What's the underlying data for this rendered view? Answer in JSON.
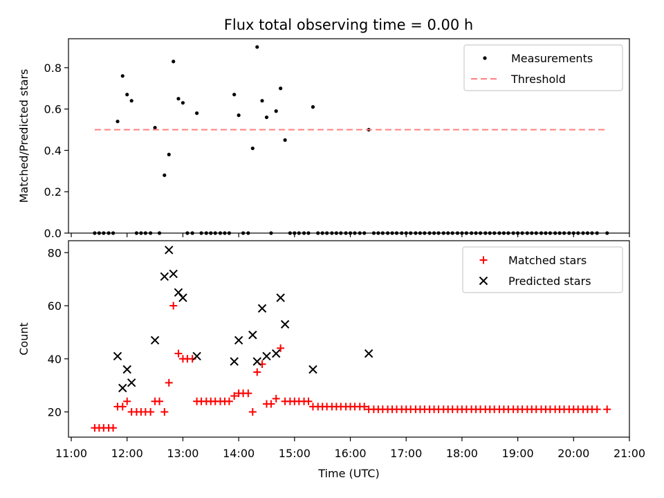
{
  "chart_data": [
    {
      "type": "scatter",
      "title": "Flux total observing time = 0.00 h",
      "xlabel": "",
      "ylabel": "Matched/Predicted stars",
      "xlim_hours": [
        10.95,
        21.0
      ],
      "ylim": [
        0,
        0.94
      ],
      "yticks": [
        0.0,
        0.2,
        0.4,
        0.6,
        0.8
      ],
      "ytick_labels": [
        "0.0",
        "0.2",
        "0.4",
        "0.6",
        "0.8"
      ],
      "grid": false,
      "legend": "top-right",
      "series": [
        {
          "name": "Measurements",
          "marker": "dot",
          "color": "#000000",
          "points": [
            [
              11.42,
              0
            ],
            [
              11.5,
              0
            ],
            [
              11.58,
              0
            ],
            [
              11.67,
              0
            ],
            [
              11.75,
              0
            ],
            [
              11.83,
              0.54
            ],
            [
              11.92,
              0.76
            ],
            [
              12.0,
              0.67
            ],
            [
              12.08,
              0.64
            ],
            [
              12.17,
              0
            ],
            [
              12.25,
              0
            ],
            [
              12.33,
              0
            ],
            [
              12.42,
              0
            ],
            [
              12.5,
              0.51
            ],
            [
              12.58,
              0
            ],
            [
              12.67,
              0.28
            ],
            [
              12.75,
              0.38
            ],
            [
              12.83,
              0.83
            ],
            [
              12.92,
              0.65
            ],
            [
              13.0,
              0.63
            ],
            [
              13.08,
              0
            ],
            [
              13.17,
              0
            ],
            [
              13.25,
              0.58
            ],
            [
              13.33,
              0
            ],
            [
              13.42,
              0
            ],
            [
              13.5,
              0
            ],
            [
              13.58,
              0
            ],
            [
              13.67,
              0
            ],
            [
              13.75,
              0
            ],
            [
              13.83,
              0
            ],
            [
              13.92,
              0.67
            ],
            [
              14.0,
              0.57
            ],
            [
              14.08,
              0
            ],
            [
              14.17,
              0
            ],
            [
              14.25,
              0.41
            ],
            [
              14.33,
              0.9
            ],
            [
              14.42,
              0.64
            ],
            [
              14.5,
              0.56
            ],
            [
              14.58,
              0
            ],
            [
              14.67,
              0.59
            ],
            [
              14.75,
              0.7
            ],
            [
              14.83,
              0.45
            ],
            [
              14.92,
              0
            ],
            [
              15.0,
              0
            ],
            [
              15.08,
              0
            ],
            [
              15.17,
              0
            ],
            [
              15.25,
              0
            ],
            [
              15.33,
              0.61
            ],
            [
              15.42,
              0
            ],
            [
              15.5,
              0
            ],
            [
              15.58,
              0
            ],
            [
              15.67,
              0
            ],
            [
              15.75,
              0
            ],
            [
              15.83,
              0
            ],
            [
              15.92,
              0
            ],
            [
              16.0,
              0
            ],
            [
              16.08,
              0
            ],
            [
              16.17,
              0
            ],
            [
              16.25,
              0
            ],
            [
              16.33,
              0.5
            ],
            [
              16.42,
              0
            ],
            [
              16.5,
              0
            ],
            [
              16.58,
              0
            ],
            [
              16.67,
              0
            ],
            [
              16.75,
              0
            ],
            [
              16.83,
              0
            ],
            [
              16.92,
              0
            ],
            [
              17.0,
              0
            ],
            [
              17.08,
              0
            ],
            [
              17.17,
              0
            ],
            [
              17.25,
              0
            ],
            [
              17.33,
              0
            ],
            [
              17.42,
              0
            ],
            [
              17.5,
              0
            ],
            [
              17.58,
              0
            ],
            [
              17.67,
              0
            ],
            [
              17.75,
              0
            ],
            [
              17.83,
              0
            ],
            [
              17.92,
              0
            ],
            [
              18.0,
              0
            ],
            [
              18.08,
              0
            ],
            [
              18.17,
              0
            ],
            [
              18.25,
              0
            ],
            [
              18.33,
              0
            ],
            [
              18.42,
              0
            ],
            [
              18.5,
              0
            ],
            [
              18.58,
              0
            ],
            [
              18.67,
              0
            ],
            [
              18.75,
              0
            ],
            [
              18.83,
              0
            ],
            [
              18.92,
              0
            ],
            [
              19.0,
              0
            ],
            [
              19.08,
              0
            ],
            [
              19.17,
              0
            ],
            [
              19.25,
              0
            ],
            [
              19.33,
              0
            ],
            [
              19.42,
              0
            ],
            [
              19.5,
              0
            ],
            [
              19.58,
              0
            ],
            [
              19.67,
              0
            ],
            [
              19.75,
              0
            ],
            [
              19.83,
              0
            ],
            [
              19.92,
              0
            ],
            [
              20.0,
              0
            ],
            [
              20.08,
              0
            ],
            [
              20.17,
              0
            ],
            [
              20.25,
              0
            ],
            [
              20.33,
              0
            ],
            [
              20.42,
              0
            ],
            [
              20.6,
              0
            ]
          ]
        },
        {
          "name": "Threshold",
          "type": "line",
          "style": "dashed",
          "color": "#ff7f7f",
          "x": [
            11.42,
            20.6
          ],
          "y": [
            0.5,
            0.5
          ]
        }
      ]
    },
    {
      "type": "scatter",
      "title": "",
      "xlabel": "Time (UTC)",
      "ylabel": "Count",
      "xlim_hours": [
        10.95,
        21.0
      ],
      "ylim": [
        10.5,
        84.5
      ],
      "yticks": [
        20,
        40,
        60,
        80
      ],
      "ytick_labels": [
        "20",
        "40",
        "60",
        "80"
      ],
      "xticks_hours": [
        11,
        12,
        13,
        14,
        15,
        16,
        17,
        18,
        19,
        20,
        21
      ],
      "xtick_labels": [
        "11:00",
        "12:00",
        "13:00",
        "14:00",
        "15:00",
        "16:00",
        "17:00",
        "18:00",
        "19:00",
        "20:00",
        "21:00"
      ],
      "grid": false,
      "legend": "top-right",
      "series": [
        {
          "name": "Matched stars",
          "marker": "plus",
          "color": "#ff0000",
          "points": [
            [
              11.42,
              14
            ],
            [
              11.5,
              14
            ],
            [
              11.58,
              14
            ],
            [
              11.67,
              14
            ],
            [
              11.75,
              14
            ],
            [
              11.83,
              22
            ],
            [
              11.92,
              22
            ],
            [
              12.0,
              24
            ],
            [
              12.08,
              20
            ],
            [
              12.17,
              20
            ],
            [
              12.25,
              20
            ],
            [
              12.33,
              20
            ],
            [
              12.42,
              20
            ],
            [
              12.5,
              24
            ],
            [
              12.58,
              24
            ],
            [
              12.67,
              20
            ],
            [
              12.75,
              31
            ],
            [
              12.83,
              60
            ],
            [
              12.92,
              42
            ],
            [
              13.0,
              40
            ],
            [
              13.08,
              40
            ],
            [
              13.17,
              40
            ],
            [
              13.25,
              24
            ],
            [
              13.33,
              24
            ],
            [
              13.42,
              24
            ],
            [
              13.5,
              24
            ],
            [
              13.58,
              24
            ],
            [
              13.67,
              24
            ],
            [
              13.75,
              24
            ],
            [
              13.83,
              24
            ],
            [
              13.92,
              26
            ],
            [
              14.0,
              27
            ],
            [
              14.08,
              27
            ],
            [
              14.17,
              27
            ],
            [
              14.25,
              20
            ],
            [
              14.33,
              35
            ],
            [
              14.42,
              38
            ],
            [
              14.5,
              23
            ],
            [
              14.58,
              23
            ],
            [
              14.67,
              25
            ],
            [
              14.75,
              44
            ],
            [
              14.83,
              24
            ],
            [
              14.92,
              24
            ],
            [
              15.0,
              24
            ],
            [
              15.08,
              24
            ],
            [
              15.17,
              24
            ],
            [
              15.25,
              24
            ],
            [
              15.33,
              22
            ],
            [
              15.42,
              22
            ],
            [
              15.5,
              22
            ],
            [
              15.58,
              22
            ],
            [
              15.67,
              22
            ],
            [
              15.75,
              22
            ],
            [
              15.83,
              22
            ],
            [
              15.92,
              22
            ],
            [
              16.0,
              22
            ],
            [
              16.08,
              22
            ],
            [
              16.17,
              22
            ],
            [
              16.25,
              22
            ],
            [
              16.33,
              21
            ],
            [
              16.42,
              21
            ],
            [
              16.5,
              21
            ],
            [
              16.58,
              21
            ],
            [
              16.67,
              21
            ],
            [
              16.75,
              21
            ],
            [
              16.83,
              21
            ],
            [
              16.92,
              21
            ],
            [
              17.0,
              21
            ],
            [
              17.08,
              21
            ],
            [
              17.17,
              21
            ],
            [
              17.25,
              21
            ],
            [
              17.33,
              21
            ],
            [
              17.42,
              21
            ],
            [
              17.5,
              21
            ],
            [
              17.58,
              21
            ],
            [
              17.67,
              21
            ],
            [
              17.75,
              21
            ],
            [
              17.83,
              21
            ],
            [
              17.92,
              21
            ],
            [
              18.0,
              21
            ],
            [
              18.08,
              21
            ],
            [
              18.17,
              21
            ],
            [
              18.25,
              21
            ],
            [
              18.33,
              21
            ],
            [
              18.42,
              21
            ],
            [
              18.5,
              21
            ],
            [
              18.58,
              21
            ],
            [
              18.67,
              21
            ],
            [
              18.75,
              21
            ],
            [
              18.83,
              21
            ],
            [
              18.92,
              21
            ],
            [
              19.0,
              21
            ],
            [
              19.08,
              21
            ],
            [
              19.17,
              21
            ],
            [
              19.25,
              21
            ],
            [
              19.33,
              21
            ],
            [
              19.42,
              21
            ],
            [
              19.5,
              21
            ],
            [
              19.58,
              21
            ],
            [
              19.67,
              21
            ],
            [
              19.75,
              21
            ],
            [
              19.83,
              21
            ],
            [
              19.92,
              21
            ],
            [
              20.0,
              21
            ],
            [
              20.08,
              21
            ],
            [
              20.17,
              21
            ],
            [
              20.25,
              21
            ],
            [
              20.33,
              21
            ],
            [
              20.42,
              21
            ],
            [
              20.6,
              21
            ]
          ]
        },
        {
          "name": "Predicted stars",
          "marker": "x",
          "color": "#000000",
          "points": [
            [
              11.83,
              41
            ],
            [
              11.92,
              29
            ],
            [
              12.0,
              36
            ],
            [
              12.08,
              31
            ],
            [
              12.5,
              47
            ],
            [
              12.67,
              71
            ],
            [
              12.75,
              81
            ],
            [
              12.83,
              72
            ],
            [
              12.92,
              65
            ],
            [
              13.0,
              63
            ],
            [
              13.25,
              41
            ],
            [
              13.92,
              39
            ],
            [
              14.0,
              47
            ],
            [
              14.25,
              49
            ],
            [
              14.33,
              39
            ],
            [
              14.42,
              59
            ],
            [
              14.5,
              41
            ],
            [
              14.67,
              42
            ],
            [
              14.75,
              63
            ],
            [
              14.83,
              53
            ],
            [
              15.33,
              36
            ],
            [
              16.33,
              42
            ]
          ]
        }
      ]
    }
  ]
}
